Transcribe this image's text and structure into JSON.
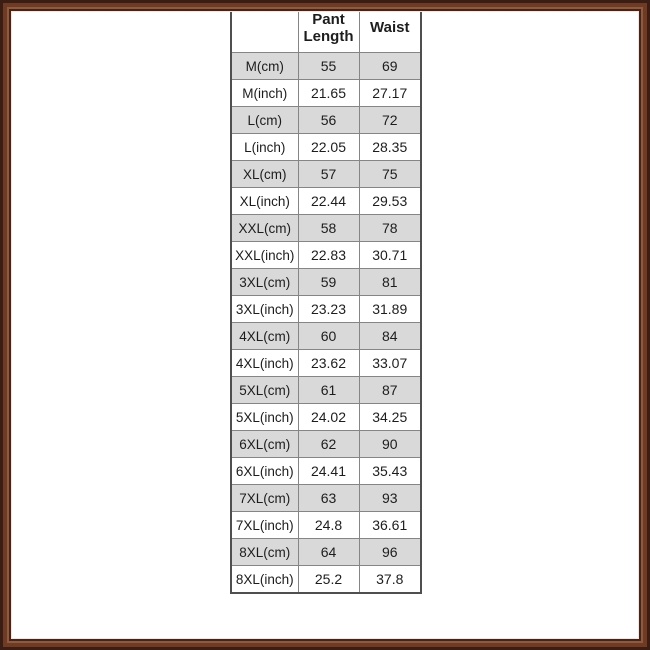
{
  "colors": {
    "frame_outer": "#3a1d13",
    "frame_main": "#6f3b25",
    "frame_highlight": "#8e5c3d",
    "frame_inner": "#472318",
    "frame_lip": "#f2e6e2",
    "shaded_row": "#d9d9d9",
    "grid_line": "#858585",
    "text": "#1d1d1d"
  },
  "chart_data": {
    "type": "table",
    "title": "",
    "columns": [
      "",
      "Pant Length",
      "Waist"
    ],
    "row_shading": "cm rows shaded gray, inch rows white, header white",
    "legend_position": "none",
    "rows": [
      {
        "size": "M(cm)",
        "pant_length": "55",
        "waist": "69"
      },
      {
        "size": "M(inch)",
        "pant_length": "21.65",
        "waist": "27.17"
      },
      {
        "size": "L(cm)",
        "pant_length": "56",
        "waist": "72"
      },
      {
        "size": "L(inch)",
        "pant_length": "22.05",
        "waist": "28.35"
      },
      {
        "size": "XL(cm)",
        "pant_length": "57",
        "waist": "75"
      },
      {
        "size": "XL(inch)",
        "pant_length": "22.44",
        "waist": "29.53"
      },
      {
        "size": "XXL(cm)",
        "pant_length": "58",
        "waist": "78"
      },
      {
        "size": "XXL(inch)",
        "pant_length": "22.83",
        "waist": "30.71"
      },
      {
        "size": "3XL(cm)",
        "pant_length": "59",
        "waist": "81"
      },
      {
        "size": "3XL(inch)",
        "pant_length": "23.23",
        "waist": "31.89"
      },
      {
        "size": "4XL(cm)",
        "pant_length": "60",
        "waist": "84"
      },
      {
        "size": "4XL(inch)",
        "pant_length": "23.62",
        "waist": "33.07"
      },
      {
        "size": "5XL(cm)",
        "pant_length": "61",
        "waist": "87"
      },
      {
        "size": "5XL(inch)",
        "pant_length": "24.02",
        "waist": "34.25"
      },
      {
        "size": "6XL(cm)",
        "pant_length": "62",
        "waist": "90"
      },
      {
        "size": "6XL(inch)",
        "pant_length": "24.41",
        "waist": "35.43"
      },
      {
        "size": "7XL(cm)",
        "pant_length": "63",
        "waist": "93"
      },
      {
        "size": "7XL(inch)",
        "pant_length": "24.8",
        "waist": "36.61"
      },
      {
        "size": "8XL(cm)",
        "pant_length": "64",
        "waist": "96"
      },
      {
        "size": "8XL(inch)",
        "pant_length": "25.2",
        "waist": "37.8"
      }
    ]
  }
}
